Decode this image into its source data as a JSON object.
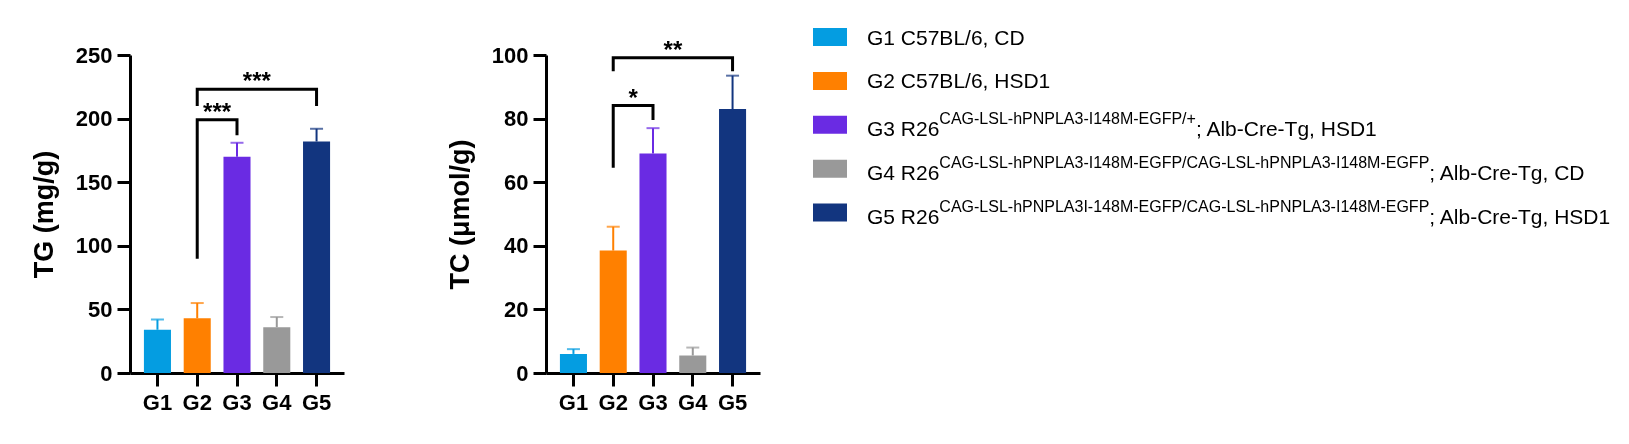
{
  "chart_data": [
    {
      "type": "bar",
      "categories": [
        "G1",
        "G2",
        "G3",
        "G4",
        "G5"
      ],
      "values": [
        34,
        43,
        170,
        36,
        182
      ],
      "colors": [
        "#049de1",
        "#ff8000",
        "#6a2be3",
        "#999999",
        "#12357f"
      ],
      "errors": [
        [
          34,
          42
        ],
        [
          43,
          55
        ],
        [
          170,
          181
        ],
        [
          36,
          44
        ],
        [
          182,
          192
        ]
      ],
      "ylabel": "TG (mg/g)",
      "ylim": [
        0,
        250
      ],
      "yticks": [
        0,
        50,
        100,
        150,
        200,
        250
      ],
      "annotations": [
        "***",
        "***"
      ]
    },
    {
      "type": "bar",
      "categories": [
        "G1",
        "G2",
        "G3",
        "G4",
        "G5"
      ],
      "stacked": true,
      "series": [
        {
          "name": "G1 C57BL/6, CD",
          "color": "#049de1",
          "values": [
            6,
            null,
            null,
            null,
            null
          ],
          "errors": [
            [
              6,
              7.5
            ],
            null,
            null,
            null,
            null
          ]
        },
        {
          "name": "G2 C57BL/6, HSD1",
          "color": "#ff8000",
          "values": [
            null,
            38.5,
            null,
            null,
            null
          ],
          "errors": [
            null,
            [
              38.5,
              46
            ],
            null,
            null,
            null
          ]
        },
        {
          "name": "G3 R26$^{CAG-LSL-hPNPLA3-I148M-EGFP/+}$; Alb-Cre-Tg, HSD1",
          "color": "#6a2be3",
          "values": [
            null,
            null,
            69,
            null,
            null
          ],
          "errors": [
            null,
            null,
            [
              69,
              77
            ],
            null,
            null
          ]
        },
        {
          "name": "G4 R26$^{CAG-LSL-hPNPLA3-I148M-EGFP/CAG-LSL-hPNPLA3-I148M-EGFP}$; Alb-Cre-Tg, CD",
          "color": "#999999",
          "values": [
            null,
            null,
            null,
            5.5,
            null
          ],
          "errors": [
            null,
            null,
            null,
            [
              5.5,
              8
            ],
            null
          ]
        },
        {
          "name": "G5 R26$^{CAG-LSL-hPNPLA3I-148M-EGFP/CAG-LSL-hPNPLA3-I148M-EGFP}$; Alb-Cre-Tg, HSD1",
          "color": "#12357f",
          "values": [
            null,
            null,
            null,
            null,
            83
          ],
          "errors": [
            null,
            null,
            null,
            null,
            [
              83,
              93.5
            ]
          ]
        }
      ],
      "ylabel": "TC (μmol/g)",
      "ylim": [
        0,
        100
      ],
      "yticks": [
        0,
        20,
        40,
        60,
        80,
        100
      ],
      "legend": "right",
      "annotations": [
        "*",
        "**"
      ]
    }
  ]
}
